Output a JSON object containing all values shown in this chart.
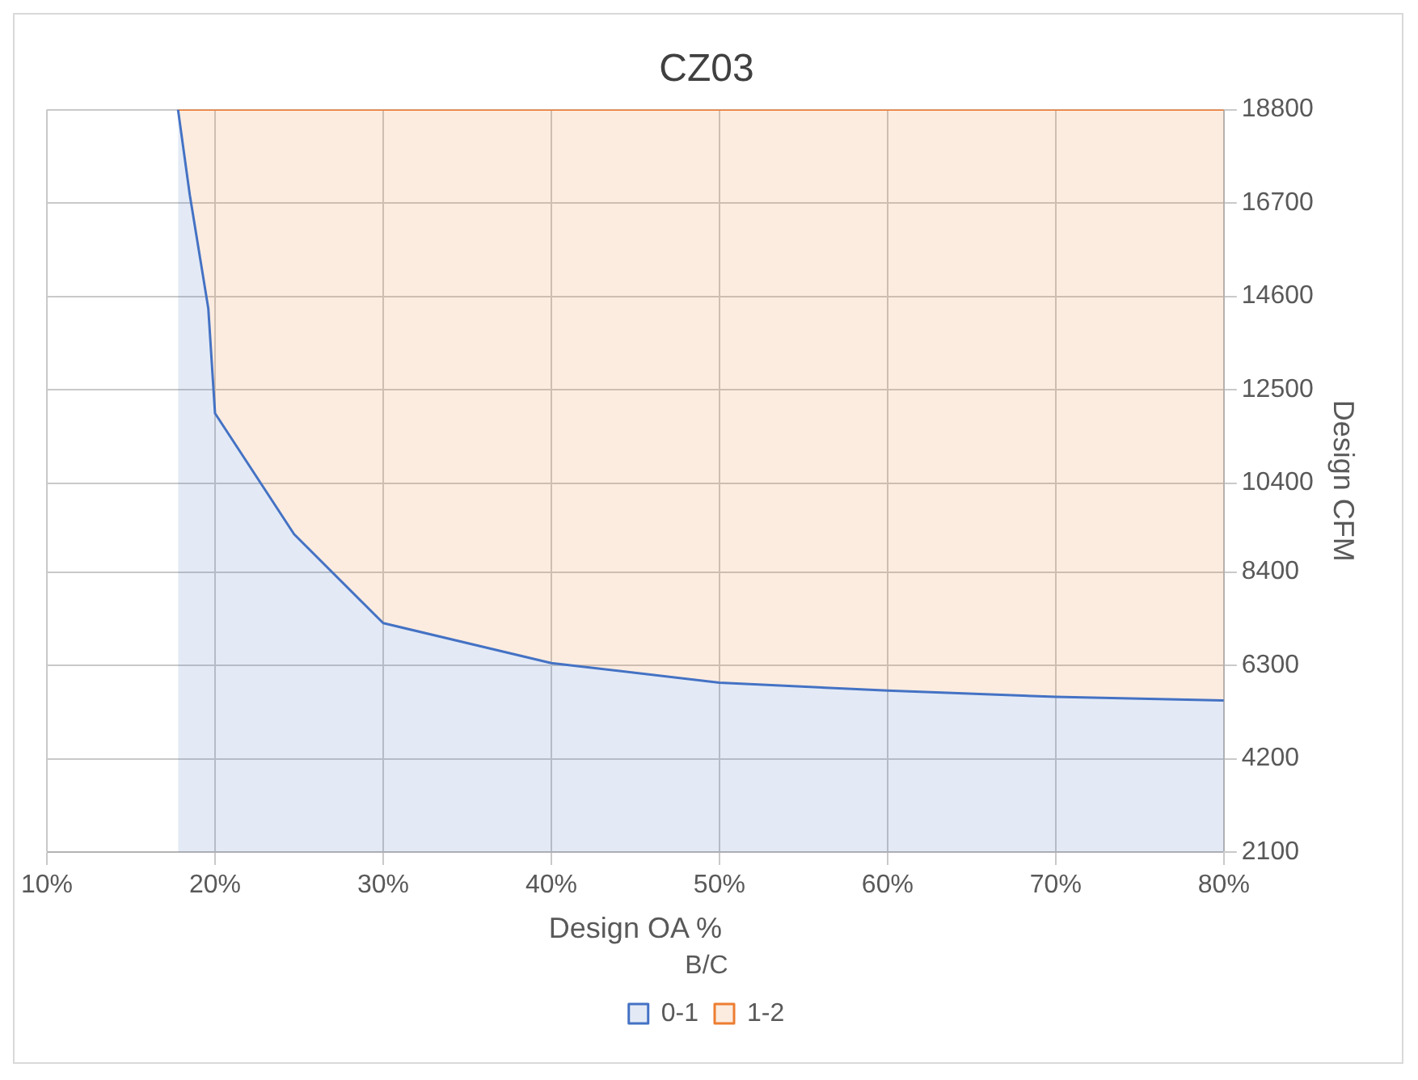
{
  "chart_data": {
    "type": "area",
    "title": "CZ03",
    "xlabel": "Design OA %",
    "ylabel": "Design CFM",
    "legend_title": "B/C",
    "x": [
      17.8,
      18.5,
      19.6,
      20,
      24.7,
      30,
      40,
      50,
      60,
      70,
      80
    ],
    "series": [
      {
        "name": "0-1",
        "color": "#4472c4",
        "values": [
          18800,
          16880,
          14330,
          11970,
          9250,
          7250,
          6350,
          5910,
          5730,
          5590,
          5510
        ]
      },
      {
        "name": "1-2",
        "color": "#ed7d31",
        "values": [
          18800,
          18800,
          18800,
          18800,
          18800,
          18800,
          18800,
          18800,
          18800,
          18800,
          18800
        ]
      }
    ],
    "xlim": [
      10,
      80
    ],
    "xticks": [
      {
        "value": 10,
        "label": "10%"
      },
      {
        "value": 20,
        "label": "20%"
      },
      {
        "value": 30,
        "label": "30%"
      },
      {
        "value": 40,
        "label": "40%"
      },
      {
        "value": 50,
        "label": "50%"
      },
      {
        "value": 60,
        "label": "60%"
      },
      {
        "value": 70,
        "label": "70%"
      },
      {
        "value": 80,
        "label": "80%"
      }
    ],
    "ylim": [
      2100,
      18800
    ],
    "yticks": [
      2100,
      4200,
      6300,
      8400,
      10400,
      12500,
      14600,
      16700,
      18800
    ],
    "grid": true,
    "legend": "bottom",
    "marker": "none",
    "line_style": "solid"
  }
}
